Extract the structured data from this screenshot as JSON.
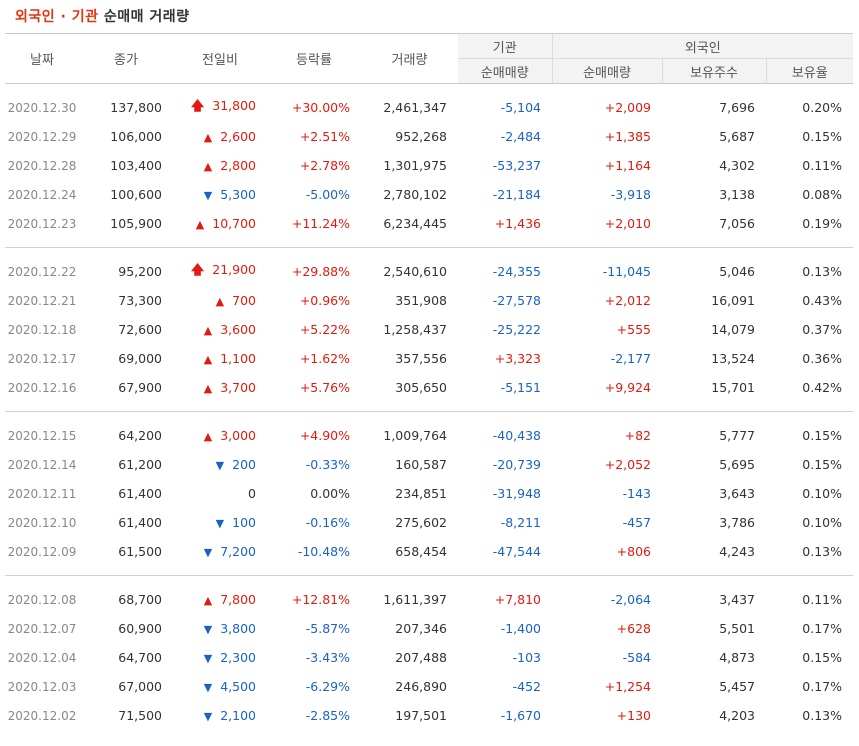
{
  "title": {
    "highlight": "외국인 · 기관",
    "rest": " 순매매 거래량"
  },
  "headers": {
    "date": "날짜",
    "close": "종가",
    "change": "전일비",
    "rate": "등락률",
    "volume": "거래량",
    "institution": "기관",
    "inst_net": "순매매량",
    "foreign": "외국인",
    "for_net": "순매매량",
    "holdings": "보유주수",
    "ratio": "보유율"
  },
  "colors": {
    "up": "#e31b0f",
    "down": "#1a63c6",
    "title_accent": "#e6330f"
  },
  "icons": {
    "upper": "upper-limit-arrow-icon",
    "up": "up-triangle-icon",
    "down": "down-triangle-icon"
  },
  "groups": [
    [
      {
        "date": "2020.12.30",
        "close": "137,800",
        "dir": "upper",
        "change": "31,800",
        "rate": "+30.00%",
        "volume": "2,461,347",
        "inst": "-5,104",
        "foreign": "+2,009",
        "holdings": "7,696",
        "ratio": "0.20%"
      },
      {
        "date": "2020.12.29",
        "close": "106,000",
        "dir": "up",
        "change": "2,600",
        "rate": "+2.51%",
        "volume": "952,268",
        "inst": "-2,484",
        "foreign": "+1,385",
        "holdings": "5,687",
        "ratio": "0.15%"
      },
      {
        "date": "2020.12.28",
        "close": "103,400",
        "dir": "up",
        "change": "2,800",
        "rate": "+2.78%",
        "volume": "1,301,975",
        "inst": "-53,237",
        "foreign": "+1,164",
        "holdings": "4,302",
        "ratio": "0.11%"
      },
      {
        "date": "2020.12.24",
        "close": "100,600",
        "dir": "down",
        "change": "5,300",
        "rate": "-5.00%",
        "volume": "2,780,102",
        "inst": "-21,184",
        "foreign": "-3,918",
        "holdings": "3,138",
        "ratio": "0.08%"
      },
      {
        "date": "2020.12.23",
        "close": "105,900",
        "dir": "up",
        "change": "10,700",
        "rate": "+11.24%",
        "volume": "6,234,445",
        "inst": "+1,436",
        "foreign": "+2,010",
        "holdings": "7,056",
        "ratio": "0.19%"
      }
    ],
    [
      {
        "date": "2020.12.22",
        "close": "95,200",
        "dir": "upper",
        "change": "21,900",
        "rate": "+29.88%",
        "volume": "2,540,610",
        "inst": "-24,355",
        "foreign": "-11,045",
        "holdings": "5,046",
        "ratio": "0.13%"
      },
      {
        "date": "2020.12.21",
        "close": "73,300",
        "dir": "up",
        "change": "700",
        "rate": "+0.96%",
        "volume": "351,908",
        "inst": "-27,578",
        "foreign": "+2,012",
        "holdings": "16,091",
        "ratio": "0.43%"
      },
      {
        "date": "2020.12.18",
        "close": "72,600",
        "dir": "up",
        "change": "3,600",
        "rate": "+5.22%",
        "volume": "1,258,437",
        "inst": "-25,222",
        "foreign": "+555",
        "holdings": "14,079",
        "ratio": "0.37%"
      },
      {
        "date": "2020.12.17",
        "close": "69,000",
        "dir": "up",
        "change": "1,100",
        "rate": "+1.62%",
        "volume": "357,556",
        "inst": "+3,323",
        "foreign": "-2,177",
        "holdings": "13,524",
        "ratio": "0.36%"
      },
      {
        "date": "2020.12.16",
        "close": "67,900",
        "dir": "up",
        "change": "3,700",
        "rate": "+5.76%",
        "volume": "305,650",
        "inst": "-5,151",
        "foreign": "+9,924",
        "holdings": "15,701",
        "ratio": "0.42%"
      }
    ],
    [
      {
        "date": "2020.12.15",
        "close": "64,200",
        "dir": "up",
        "change": "3,000",
        "rate": "+4.90%",
        "volume": "1,009,764",
        "inst": "-40,438",
        "foreign": "+82",
        "holdings": "5,777",
        "ratio": "0.15%"
      },
      {
        "date": "2020.12.14",
        "close": "61,200",
        "dir": "down",
        "change": "200",
        "rate": "-0.33%",
        "volume": "160,587",
        "inst": "-20,739",
        "foreign": "+2,052",
        "holdings": "5,695",
        "ratio": "0.15%"
      },
      {
        "date": "2020.12.11",
        "close": "61,400",
        "dir": "none",
        "change": "0",
        "rate": "0.00%",
        "volume": "234,851",
        "inst": "-31,948",
        "foreign": "-143",
        "holdings": "3,643",
        "ratio": "0.10%"
      },
      {
        "date": "2020.12.10",
        "close": "61,400",
        "dir": "down",
        "change": "100",
        "rate": "-0.16%",
        "volume": "275,602",
        "inst": "-8,211",
        "foreign": "-457",
        "holdings": "3,786",
        "ratio": "0.10%"
      },
      {
        "date": "2020.12.09",
        "close": "61,500",
        "dir": "down",
        "change": "7,200",
        "rate": "-10.48%",
        "volume": "658,454",
        "inst": "-47,544",
        "foreign": "+806",
        "holdings": "4,243",
        "ratio": "0.13%"
      }
    ],
    [
      {
        "date": "2020.12.08",
        "close": "68,700",
        "dir": "up",
        "change": "7,800",
        "rate": "+12.81%",
        "volume": "1,611,397",
        "inst": "+7,810",
        "foreign": "-2,064",
        "holdings": "3,437",
        "ratio": "0.11%"
      },
      {
        "date": "2020.12.07",
        "close": "60,900",
        "dir": "down",
        "change": "3,800",
        "rate": "-5.87%",
        "volume": "207,346",
        "inst": "-1,400",
        "foreign": "+628",
        "holdings": "5,501",
        "ratio": "0.17%"
      },
      {
        "date": "2020.12.04",
        "close": "64,700",
        "dir": "down",
        "change": "2,300",
        "rate": "-3.43%",
        "volume": "207,488",
        "inst": "-103",
        "foreign": "-584",
        "holdings": "4,873",
        "ratio": "0.15%"
      },
      {
        "date": "2020.12.03",
        "close": "67,000",
        "dir": "down",
        "change": "4,500",
        "rate": "-6.29%",
        "volume": "246,890",
        "inst": "-452",
        "foreign": "+1,254",
        "holdings": "5,457",
        "ratio": "0.17%"
      },
      {
        "date": "2020.12.02",
        "close": "71,500",
        "dir": "down",
        "change": "2,100",
        "rate": "-2.85%",
        "volume": "197,501",
        "inst": "-1,670",
        "foreign": "+130",
        "holdings": "4,203",
        "ratio": "0.13%"
      }
    ]
  ]
}
